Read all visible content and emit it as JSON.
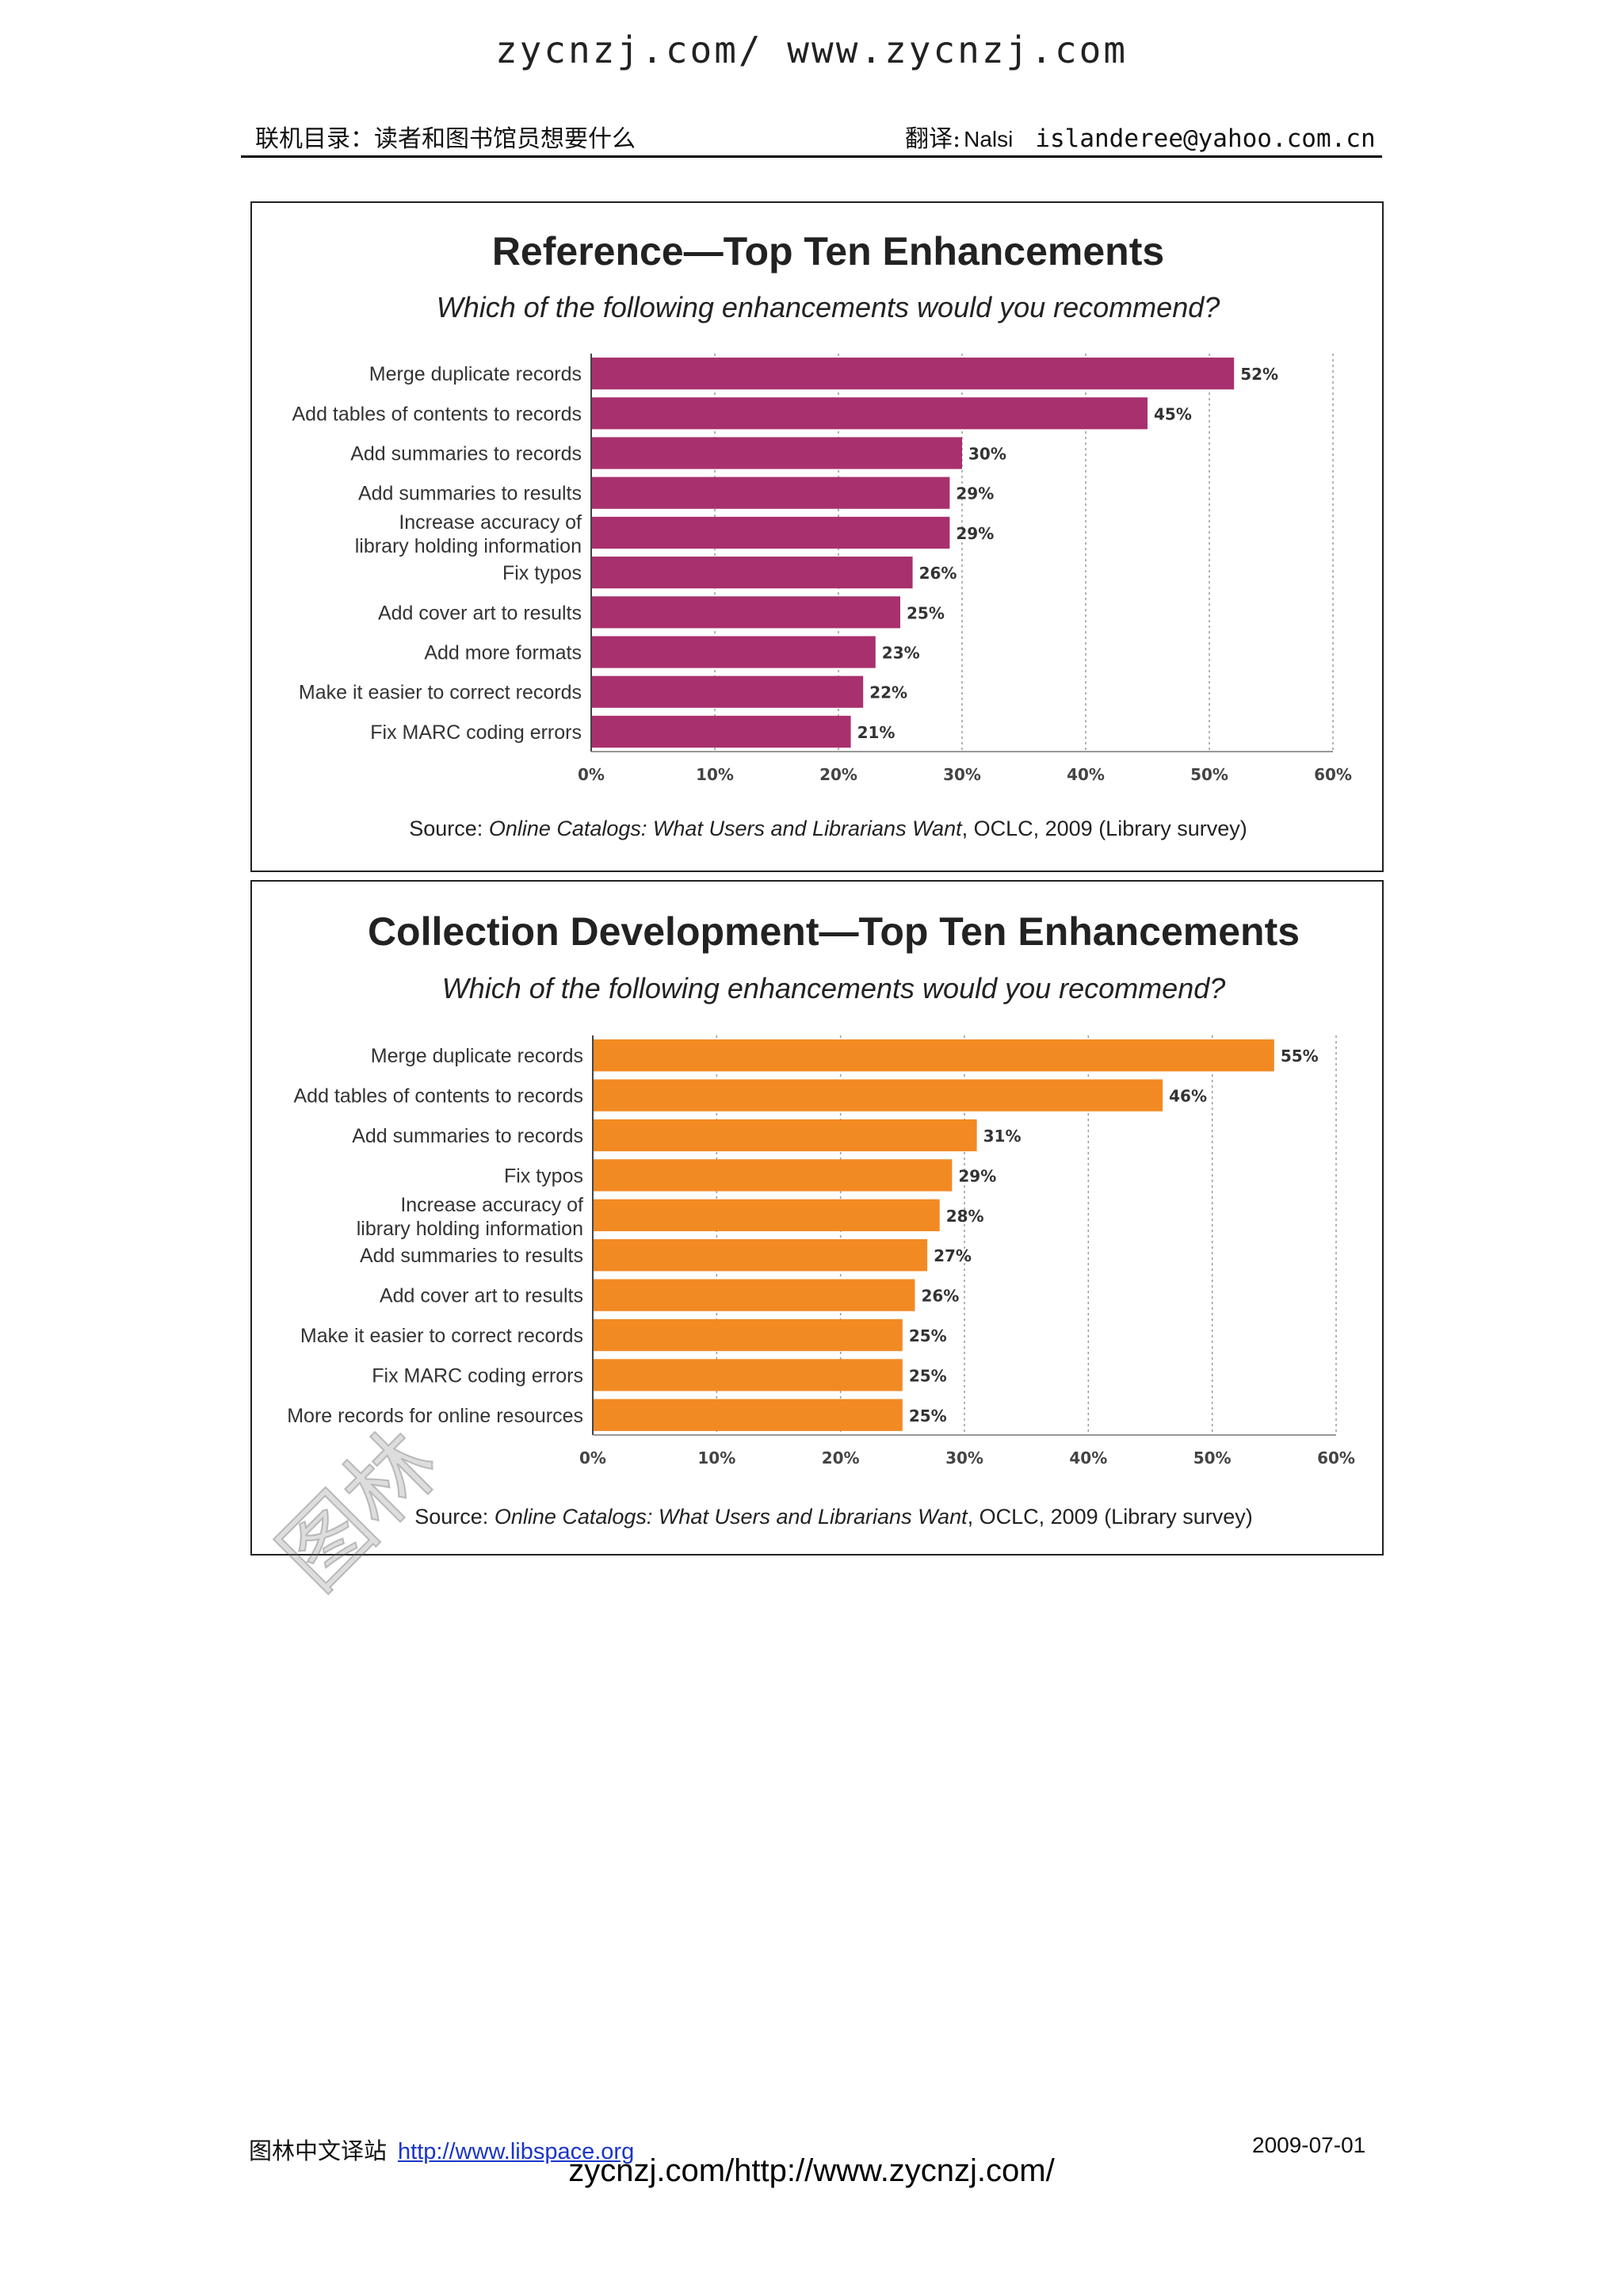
{
  "page": {
    "watermark_top": "zycnzj.com/ www.zycnzj.com",
    "header_title": "联机目录：读者和图书馆员想要什么",
    "header_translator_label": "翻译:",
    "header_translator_name": "Nalsi",
    "header_email": "islanderee@yahoo.com.cn",
    "footer_site": "图林中文译站",
    "footer_link": "http://www.libspace.org",
    "footer_date": "2009-07-01",
    "footer_watermark": "zycnzj.com/http://www.zycnzj.com/",
    "diagonal_watermark": "图林"
  },
  "chart_data": [
    {
      "type": "bar",
      "orientation": "horizontal",
      "title": "Reference—Top Ten Enhancements",
      "subtitle": "Which of the following enhancements would you recommend?",
      "categories": [
        "Merge duplicate records",
        "Add tables of contents to records",
        "Add summaries to records",
        "Add summaries to results",
        "Increase accuracy of library holding information",
        "Fix typos",
        "Add cover art to results",
        "Add more formats",
        "Make it easier to correct records",
        "Fix MARC coding errors"
      ],
      "values": [
        52,
        45,
        30,
        29,
        29,
        26,
        25,
        23,
        22,
        21
      ],
      "value_labels": [
        "52%",
        "45%",
        "30%",
        "29%",
        "29%",
        "26%",
        "25%",
        "23%",
        "22%",
        "21%"
      ],
      "xlim": [
        0,
        60
      ],
      "x_ticks": [
        "0%",
        "10%",
        "20%",
        "30%",
        "40%",
        "50%",
        "60%"
      ],
      "grid": "vertical dashed",
      "bar_color": "#a8306e",
      "source_prefix": "Source: ",
      "source_italic": "Online Catalogs: What Users and Librarians Want",
      "source_suffix": ", OCLC, 2009 (Library survey)"
    },
    {
      "type": "bar",
      "orientation": "horizontal",
      "title": "Collection Development—Top Ten Enhancements",
      "subtitle": "Which of the following enhancements would you recommend?",
      "categories": [
        "Merge duplicate records",
        "Add tables of contents to records",
        "Add summaries to records",
        "Fix typos",
        "Increase accuracy of library holding information",
        "Add summaries to results",
        "Add cover art to results",
        "Make it easier to correct records",
        "Fix MARC coding errors",
        "More records for online resources"
      ],
      "values": [
        55,
        46,
        31,
        29,
        28,
        27,
        26,
        25,
        25,
        25
      ],
      "value_labels": [
        "55%",
        "46%",
        "31%",
        "29%",
        "28%",
        "27%",
        "26%",
        "25%",
        "25%",
        "25%"
      ],
      "xlim": [
        0,
        60
      ],
      "x_ticks": [
        "0%",
        "10%",
        "20%",
        "30%",
        "40%",
        "50%",
        "60%"
      ],
      "grid": "vertical dashed",
      "bar_color": "#f28a24",
      "source_prefix": "Source: ",
      "source_italic": "Online Catalogs: What Users and Librarians Want",
      "source_suffix": ", OCLC, 2009 (Library survey)"
    }
  ]
}
